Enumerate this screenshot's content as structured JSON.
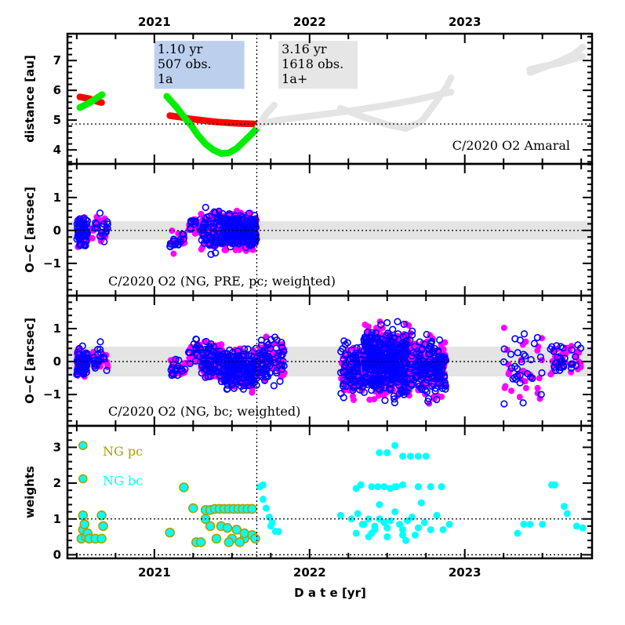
{
  "chart_data": {
    "type": "scatter",
    "title": "",
    "xlabel": "D a t e [yr]",
    "x_range": [
      2020.44,
      2023.82
    ],
    "x_major_ticks": [
      2021,
      2022,
      2023
    ],
    "x_tick_labels": [
      "2021",
      "2022",
      "2023"
    ],
    "x_minor_step": 0.25,
    "vertical_marker_x": 2021.66,
    "panels": [
      {
        "id": "distance",
        "ylabel": "distance [au]",
        "ylim": [
          3.53,
          7.9
        ],
        "y_ticks": [
          4,
          5,
          6,
          7
        ],
        "y_tick_labels": [
          "4",
          "5",
          "6",
          "7"
        ],
        "y_minor_step": 0.2,
        "hline": 4.87,
        "annotation": "C/2020 O2 Amaral",
        "info_boxes": [
          {
            "lines": [
              "1.10 yr",
              "507 obs.",
              "1a"
            ],
            "color": "#bcd0ee",
            "x_range": [
              2021.0,
              2021.58
            ],
            "y_top": 7.66,
            "y_bottom": 6.05
          },
          {
            "lines": [
              "3.16 yr",
              "1618 obs.",
              "1a+"
            ],
            "color": "#e6e6e6",
            "x_range": [
              2021.8,
              2022.31
            ],
            "y_top": 7.66,
            "y_bottom": 6.05
          }
        ],
        "series": [
          {
            "name": "heliocentric distance (fit arc)",
            "color": "#ff0000",
            "x": [
              2020.52,
              2020.54,
              2020.56,
              2020.58,
              2020.62,
              2020.65,
              2020.67,
              2021.1,
              2021.17,
              2021.23,
              2021.3,
              2021.36,
              2021.42,
              2021.48,
              2021.54,
              2021.6,
              2021.66
            ],
            "y": [
              5.78,
              5.76,
              5.74,
              5.72,
              5.65,
              5.6,
              5.58,
              5.15,
              5.1,
              5.04,
              5.0,
              4.96,
              4.93,
              4.91,
              4.89,
              4.88,
              4.87
            ]
          },
          {
            "name": "geocentric distance (fit arc)",
            "color": "#00ee00",
            "x": [
              2020.52,
              2020.55,
              2020.58,
              2020.61,
              2020.64,
              2020.67,
              2021.08,
              2021.14,
              2021.2,
              2021.24,
              2021.28,
              2021.33,
              2021.38,
              2021.43,
              2021.48,
              2021.53,
              2021.58,
              2021.62,
              2021.66
            ],
            "y": [
              5.42,
              5.5,
              5.58,
              5.68,
              5.78,
              5.88,
              5.8,
              5.45,
              5.05,
              4.8,
              4.5,
              4.2,
              4.0,
              3.88,
              3.9,
              4.05,
              4.3,
              4.5,
              4.72
            ]
          },
          {
            "name": "heliocentric distance (later)",
            "color": "#e4e4e4",
            "x": [
              2021.7,
              2021.8,
              2021.95,
              2022.1,
              2022.25,
              2022.4,
              2022.55,
              2022.7,
              2022.85,
              2022.92,
              2023.42,
              2023.5,
              2023.6,
              2023.7,
              2023.76
            ],
            "y": [
              4.9,
              5.0,
              5.1,
              5.2,
              5.3,
              5.42,
              5.55,
              5.7,
              5.88,
              5.95,
              6.7,
              6.8,
              6.9,
              7.05,
              7.15
            ]
          },
          {
            "name": "geocentric distance (later)",
            "color": "#e4e4e4",
            "x": [
              2021.67,
              2021.72,
              2021.78,
              2022.2,
              2022.35,
              2022.5,
              2022.62,
              2022.72,
              2022.8,
              2022.88,
              2022.92,
              2023.42,
              2023.5,
              2023.6,
              2023.7,
              2023.76
            ],
            "y": [
              4.8,
              5.2,
              5.55,
              5.4,
              5.1,
              4.85,
              4.72,
              4.95,
              5.5,
              6.1,
              6.5,
              6.6,
              6.75,
              6.95,
              7.2,
              7.45
            ]
          }
        ]
      },
      {
        "id": "oc-pre",
        "ylabel": "O−C [arcsec]",
        "ylim": [
          -1.98,
          2.02
        ],
        "y_ticks": [
          -1,
          0,
          1
        ],
        "y_tick_labels": [
          "−1",
          "0",
          "1"
        ],
        "y_minor_step": 0.2,
        "hline": 0,
        "band": [
          -0.28,
          0.28
        ],
        "annotation": "C/2020 O2 (NG, PRE, pc; weighted)",
        "clusters": [
          {
            "x": [
              2020.5,
              2020.57
            ],
            "y": [
              -0.65,
              0.55
            ],
            "n": 60
          },
          {
            "x": [
              2020.6,
              2020.7
            ],
            "y": [
              -0.6,
              0.65
            ],
            "n": 18
          },
          {
            "x": [
              2021.1,
              2021.2
            ],
            "y": [
              -0.8,
              0.15
            ],
            "n": 16
          },
          {
            "x": [
              2021.22,
              2021.3
            ],
            "y": [
              -0.15,
              0.55
            ],
            "n": 14
          },
          {
            "x": [
              2021.3,
              2021.42
            ],
            "y": [
              -0.85,
              0.9
            ],
            "n": 60
          },
          {
            "x": [
              2021.42,
              2021.66
            ],
            "y": [
              -0.8,
              0.7
            ],
            "n": 220
          }
        ],
        "series": [
          {
            "name": "RA residuals",
            "marker": "filled",
            "color": "#ff00ff"
          },
          {
            "name": "Dec residuals",
            "marker": "open",
            "color": "#0000ff"
          }
        ]
      },
      {
        "id": "oc-full",
        "ylabel": "O−C [arcsec]",
        "ylim": [
          -1.95,
          2.0
        ],
        "y_ticks": [
          -1,
          0,
          1
        ],
        "y_tick_labels": [
          "−1",
          "0",
          "1"
        ],
        "y_minor_step": 0.2,
        "hline": 0,
        "band": [
          -0.45,
          0.45
        ],
        "annotation": "C/2020 O2 (NG, bc; weighted)",
        "clusters": [
          {
            "x": [
              2020.5,
              2020.57
            ],
            "y": [
              -0.65,
              0.55
            ],
            "n": 60
          },
          {
            "x": [
              2020.6,
              2020.7
            ],
            "y": [
              -0.6,
              0.7
            ],
            "n": 18
          },
          {
            "x": [
              2021.1,
              2021.2
            ],
            "y": [
              -0.65,
              0.3
            ],
            "n": 16
          },
          {
            "x": [
              2021.22,
              2021.3
            ],
            "y": [
              -0.2,
              0.8
            ],
            "n": 16
          },
          {
            "x": [
              2021.3,
              2021.45
            ],
            "y": [
              -0.85,
              0.85
            ],
            "n": 80
          },
          {
            "x": [
              2021.45,
              2021.66
            ],
            "y": [
              -1.05,
              0.55
            ],
            "n": 200
          },
          {
            "x": [
              2021.66,
              2021.84
            ],
            "y": [
              -0.85,
              1.0
            ],
            "n": 70
          },
          {
            "x": [
              2022.2,
              2022.35
            ],
            "y": [
              -1.45,
              1.0
            ],
            "n": 80
          },
          {
            "x": [
              2022.35,
              2022.65
            ],
            "y": [
              -1.45,
              1.4
            ],
            "n": 420
          },
          {
            "x": [
              2022.65,
              2022.88
            ],
            "y": [
              -1.45,
              1.1
            ],
            "n": 160
          },
          {
            "x": [
              2023.25,
              2023.5
            ],
            "y": [
              -1.5,
              1.2
            ],
            "n": 30
          },
          {
            "x": [
              2023.55,
              2023.75
            ],
            "y": [
              -0.7,
              0.8
            ],
            "n": 30
          }
        ],
        "series": [
          {
            "name": "RA residuals",
            "marker": "filled",
            "color": "#ff00ff"
          },
          {
            "name": "Dec residuals",
            "marker": "open",
            "color": "#0000ff"
          }
        ]
      },
      {
        "id": "weights",
        "ylabel": "weights",
        "ylim": [
          -0.1,
          3.6
        ],
        "y_ticks": [
          0,
          1,
          2,
          3
        ],
        "y_tick_labels": [
          "0",
          "1",
          "2",
          "3"
        ],
        "y_minor_step": 0.2,
        "hline": 1,
        "hline2": 0,
        "legend": [
          {
            "label": "NG pc",
            "color": "#aaa000",
            "marker_y": 3.05
          },
          {
            "label": "NG bc",
            "color": "#00ffff",
            "marker_y": 2.12
          }
        ],
        "series": [
          {
            "name": "NG pc",
            "edge_color": "#aaa000",
            "fill_color": "#00ffff",
            "x": [
              2020.53,
              2020.54,
              2020.55,
              2020.56,
              2020.57,
              2020.58,
              2020.62,
              2020.66,
              2020.67,
              2020.54,
              2020.66,
              2021.1,
              2021.19,
              2021.27,
              2021.3,
              2021.33,
              2021.36,
              2021.39,
              2021.42,
              2021.45,
              2021.48,
              2021.51,
              2021.54,
              2021.57,
              2021.6,
              2021.63,
              2021.25,
              2021.4,
              2021.5,
              2021.58,
              2021.33,
              2021.36,
              2021.43,
              2021.47,
              2021.53,
              2021.58,
              2021.63,
              2021.65,
              2021.48,
              2021.55
            ],
            "y": [
              0.45,
              0.7,
              0.85,
              0.5,
              0.6,
              0.45,
              0.45,
              0.45,
              0.8,
              1.1,
              1.1,
              0.62,
              1.88,
              0.35,
              0.35,
              1.25,
              1.25,
              1.28,
              1.28,
              1.28,
              1.28,
              1.28,
              1.28,
              1.28,
              1.28,
              1.28,
              1.3,
              0.45,
              0.45,
              0.45,
              1.0,
              0.8,
              0.8,
              0.75,
              0.7,
              0.6,
              0.55,
              0.45,
              0.35,
              0.35
            ]
          },
          {
            "name": "NG bc",
            "edge_color": "#00ffff",
            "fill_color": "#00ffff",
            "x": [
              2021.68,
              2021.7,
              2021.72,
              2021.74,
              2021.76,
              2021.78,
              2021.8,
              2021.7,
              2021.75,
              2022.2,
              2022.27,
              2022.31,
              2022.34,
              2022.38,
              2022.42,
              2022.45,
              2022.48,
              2022.5,
              2022.52,
              2022.55,
              2022.58,
              2022.6,
              2022.63,
              2022.66,
              2022.7,
              2022.74,
              2022.78,
              2022.82,
              2022.86,
              2022.9,
              2022.3,
              2022.33,
              2022.48,
              2022.52,
              2022.56,
              2022.4,
              2022.44,
              2022.55,
              2022.6,
              2022.7,
              2022.78,
              2022.85,
              2022.3,
              2022.4,
              2022.6,
              2022.62,
              2022.68,
              2022.5,
              2022.45,
              2022.72,
              2023.34,
              2023.38,
              2023.42,
              2023.5,
              2023.56,
              2023.58,
              2023.64,
              2023.66,
              2023.72,
              2023.76,
              2022.45,
              2022.5,
              2022.55,
              2022.6,
              2022.65,
              2022.7,
              2022.75,
              2022.35,
              2022.38,
              2022.42
            ],
            "y": [
              1.9,
              1.55,
              1.3,
              1.05,
              0.9,
              0.65,
              0.65,
              1.95,
              0.8,
              1.1,
              1.0,
              1.15,
              0.85,
              1.0,
              0.8,
              1.0,
              0.9,
              0.75,
              0.95,
              1.2,
              0.85,
              0.7,
              0.95,
              1.05,
              0.75,
              0.9,
              0.7,
              1.1,
              0.7,
              0.85,
              1.85,
              1.95,
              1.9,
              1.85,
              1.9,
              1.9,
              1.9,
              1.9,
              1.95,
              1.9,
              1.9,
              1.9,
              0.6,
              0.6,
              0.55,
              0.4,
              0.55,
              0.5,
              1.4,
              1.45,
              0.6,
              0.85,
              0.85,
              0.85,
              1.95,
              1.95,
              1.35,
              1.15,
              0.8,
              0.75,
              2.85,
              2.85,
              3.05,
              2.75,
              2.75,
              2.75,
              2.75,
              0.85,
              0.5,
              0.7
            ]
          }
        ]
      }
    ]
  }
}
